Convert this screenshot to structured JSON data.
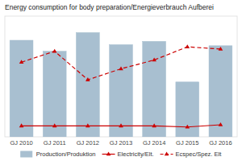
{
  "chart_data": {
    "type": "bar",
    "title": "Energy consumption for body preparation/Energieverbrauch Aufberei",
    "categories": [
      "GJ 2010",
      "GJ 2011",
      "GJ 2012",
      "GJ 2013",
      "GJ 2014",
      "GJ 2015",
      "GJ 2016"
    ],
    "series": [
      {
        "name": "Production/Produktion",
        "type": "bar",
        "color": "#a8bfd0",
        "values": [
          88,
          78,
          95,
          84,
          87,
          50,
          83
        ]
      },
      {
        "name": "Electricity/Elt.",
        "type": "line",
        "axis": "y2",
        "color": "#cc0000",
        "marker": "triangle",
        "line_style": "solid",
        "values": [
          10,
          10,
          10,
          10,
          10,
          9,
          11
        ]
      },
      {
        "name": "Ecspec/Spez. Elt",
        "type": "line",
        "axis": "y2",
        "color": "#cc0000",
        "marker": "triangle",
        "line_style": "dashed",
        "values": [
          68,
          78,
          52,
          62,
          70,
          82,
          80
        ]
      }
    ],
    "ylim": [
      0,
      110
    ],
    "y2lim": [
      0,
      110
    ],
    "tick_labels": "x",
    "grid": false,
    "legend": "bottom"
  }
}
